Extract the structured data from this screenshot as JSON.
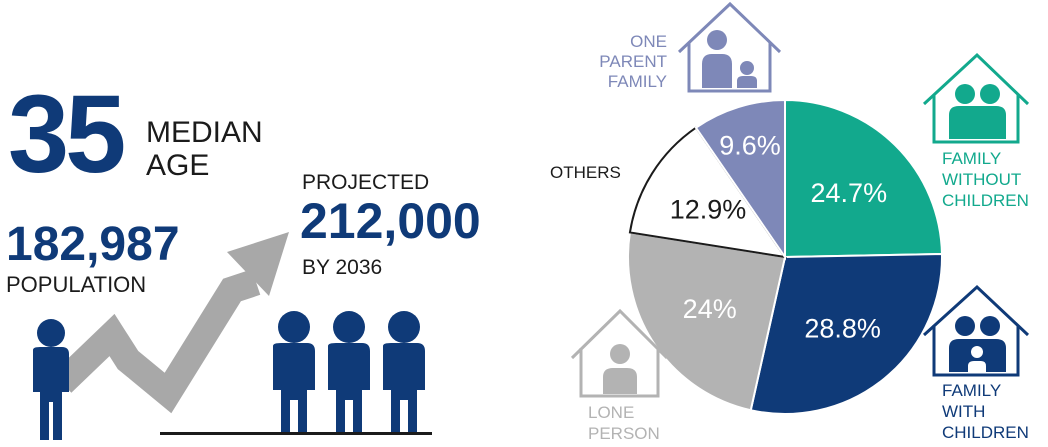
{
  "stats": {
    "median_age": "35",
    "median_label_1": "MEDIAN",
    "median_label_2": "AGE",
    "population": "182,987",
    "population_label": "POPULATION",
    "projected_label": "PROJECTED",
    "projected_value": "212,000",
    "projected_year": "BY 2036"
  },
  "labels": {
    "one_parent": [
      "ONE",
      "PARENT",
      "FAMILY"
    ],
    "without_children": [
      "FAMILY",
      "WITHOUT",
      "CHILDREN"
    ],
    "with_children": [
      "FAMILY",
      "WITH",
      "CHILDREN"
    ],
    "lone_person": [
      "LONE",
      "PERSON"
    ],
    "others": "OTHERS"
  },
  "colors": {
    "navy": "#0f3a78",
    "teal": "#12a98d",
    "purple": "#7e88b8",
    "grey": "#b3b3b3",
    "white": "#ffffff",
    "arrow": "#a8a8a8"
  },
  "icons": [
    "person-icon",
    "growth-arrow-icon",
    "house-icon"
  ],
  "chart_data": {
    "type": "pie",
    "slices": [
      {
        "category": "Family without children",
        "value": 24.7,
        "label": "24.7%",
        "color": "#12a98d"
      },
      {
        "category": "Family with children",
        "value": 28.8,
        "label": "28.8%",
        "color": "#0f3a78"
      },
      {
        "category": "Lone person",
        "value": 24,
        "label": "24%",
        "color": "#b3b3b3"
      },
      {
        "category": "Others",
        "value": 12.9,
        "label": "12.9%",
        "color": "#ffffff"
      },
      {
        "category": "One parent family",
        "value": 9.6,
        "label": "9.6%",
        "color": "#7e88b8"
      }
    ]
  }
}
